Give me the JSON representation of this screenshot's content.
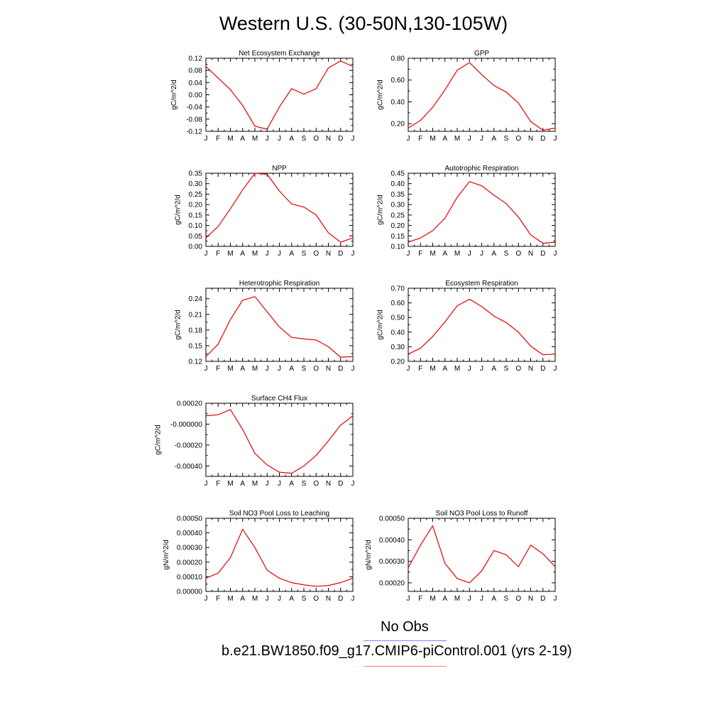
{
  "page": {
    "title": "Western U.S. (30-50N,130-105W)",
    "legend": [
      {
        "label": "No Obs",
        "color": "#8080ff"
      },
      {
        "label": "b.e21.BW1850.f09_g17.CMIP6-piControl.001 (yrs 2-19)",
        "color": "#ff8080"
      }
    ]
  },
  "line_color": "#e60000",
  "chart_data": [
    {
      "type": "line",
      "title": "Net Ecosystem Exchange",
      "ylabel": "gC/m^2/d",
      "categories": [
        "J",
        "F",
        "M",
        "A",
        "M",
        "J",
        "J",
        "A",
        "S",
        "O",
        "N",
        "D",
        "J"
      ],
      "ylim": [
        -0.12,
        0.12
      ],
      "yticks": [
        0.12,
        0.08,
        0.04,
        0.0,
        -0.04,
        -0.08,
        -0.12
      ],
      "ytick_labels": [
        "0.12",
        "0.08",
        "0.04",
        "0.00",
        "-0.04",
        "-0.08",
        "-0.12"
      ],
      "series": [
        {
          "values": [
            0.093,
            0.055,
            0.017,
            -0.035,
            -0.103,
            -0.113,
            -0.04,
            0.02,
            0.002,
            0.02,
            0.088,
            0.111,
            0.093
          ]
        }
      ]
    },
    {
      "type": "line",
      "title": "GPP",
      "ylabel": "gC/m^2/d",
      "categories": [
        "J",
        "F",
        "M",
        "A",
        "M",
        "J",
        "J",
        "A",
        "S",
        "O",
        "N",
        "D",
        "J"
      ],
      "ylim": [
        0.13,
        0.8
      ],
      "yticks": [
        0.2,
        0.4,
        0.6,
        0.8
      ],
      "ytick_labels": [
        "0.20",
        "0.40",
        "0.60",
        "0.80"
      ],
      "series": [
        {
          "values": [
            0.16,
            0.23,
            0.35,
            0.51,
            0.69,
            0.76,
            0.65,
            0.55,
            0.49,
            0.39,
            0.22,
            0.14,
            0.16
          ]
        }
      ]
    },
    {
      "type": "line",
      "title": "NPP",
      "ylabel": "gC/m^2/d",
      "categories": [
        "J",
        "F",
        "M",
        "A",
        "M",
        "J",
        "J",
        "A",
        "S",
        "O",
        "N",
        "D",
        "J"
      ],
      "ylim": [
        0.0,
        0.35
      ],
      "yticks": [
        0.35,
        0.3,
        0.25,
        0.2,
        0.15,
        0.1,
        0.05,
        0.0
      ],
      "ytick_labels": [
        "0.35",
        "0.30",
        "0.25",
        "0.20",
        "0.15",
        "0.10",
        "0.05",
        "0.00"
      ],
      "series": [
        {
          "values": [
            0.04,
            0.095,
            0.18,
            0.27,
            0.35,
            0.345,
            0.265,
            0.203,
            0.188,
            0.15,
            0.065,
            0.02,
            0.04
          ]
        }
      ]
    },
    {
      "type": "line",
      "title": "Autotrophic Respiration",
      "ylabel": "gC/m^2/d",
      "categories": [
        "J",
        "F",
        "M",
        "A",
        "M",
        "J",
        "J",
        "A",
        "S",
        "O",
        "N",
        "D",
        "J"
      ],
      "ylim": [
        0.1,
        0.45
      ],
      "yticks": [
        0.45,
        0.4,
        0.35,
        0.3,
        0.25,
        0.2,
        0.15,
        0.1
      ],
      "ytick_labels": [
        "0.45",
        "0.40",
        "0.35",
        "0.30",
        "0.25",
        "0.20",
        "0.15",
        "0.10"
      ],
      "series": [
        {
          "values": [
            0.12,
            0.14,
            0.175,
            0.235,
            0.335,
            0.41,
            0.39,
            0.345,
            0.305,
            0.24,
            0.155,
            0.115,
            0.12
          ]
        }
      ]
    },
    {
      "type": "line",
      "title": "Heterotrophic Respiration",
      "ylabel": "gC/m^2/d",
      "categories": [
        "J",
        "F",
        "M",
        "A",
        "M",
        "J",
        "J",
        "A",
        "S",
        "O",
        "N",
        "D",
        "J"
      ],
      "ylim": [
        0.12,
        0.26
      ],
      "yticks": [
        0.24,
        0.21,
        0.18,
        0.15,
        0.12
      ],
      "ytick_labels": [
        "0.24",
        "0.21",
        "0.18",
        "0.15",
        "0.12"
      ],
      "series": [
        {
          "values": [
            0.129,
            0.153,
            0.2,
            0.237,
            0.244,
            0.215,
            0.186,
            0.166,
            0.163,
            0.161,
            0.148,
            0.128,
            0.129
          ]
        }
      ]
    },
    {
      "type": "line",
      "title": "Ecosystem Respiration",
      "ylabel": "gC/m^2/d",
      "categories": [
        "J",
        "F",
        "M",
        "A",
        "M",
        "J",
        "J",
        "A",
        "S",
        "O",
        "N",
        "D",
        "J"
      ],
      "ylim": [
        0.2,
        0.7
      ],
      "yticks": [
        0.7,
        0.6,
        0.5,
        0.4,
        0.3,
        0.2
      ],
      "ytick_labels": [
        "0.70",
        "0.60",
        "0.50",
        "0.40",
        "0.30",
        "0.20"
      ],
      "series": [
        {
          "values": [
            0.25,
            0.29,
            0.37,
            0.47,
            0.58,
            0.625,
            0.575,
            0.51,
            0.465,
            0.4,
            0.305,
            0.245,
            0.25
          ]
        }
      ]
    },
    {
      "type": "line",
      "title": "Surface CH4 Flux",
      "ylabel": "gC/m^2/d",
      "categories": [
        "J",
        "F",
        "M",
        "A",
        "M",
        "J",
        "J",
        "A",
        "S",
        "O",
        "N",
        "D",
        "J"
      ],
      "ylim": [
        -0.0005,
        0.0002
      ],
      "yticks": [
        0.0002,
        0.0,
        -0.0002,
        -0.0004
      ],
      "ytick_labels": [
        "0.00020",
        "-0.000000",
        "-0.00020",
        "-0.00040"
      ],
      "series": [
        {
          "values": [
            8e-05,
            9e-05,
            0.00014,
            -5e-05,
            -0.00028,
            -0.00039,
            -0.00046,
            -0.00047,
            -0.0004,
            -0.0003,
            -0.00016,
            -1e-05,
            8e-05
          ]
        }
      ]
    },
    {
      "type": "line",
      "title": "Soil NO3 Pool Loss to Leaching",
      "ylabel": "gN/m^2/d",
      "categories": [
        "J",
        "F",
        "M",
        "A",
        "M",
        "J",
        "J",
        "A",
        "S",
        "O",
        "N",
        "D",
        "J"
      ],
      "ylim": [
        0.0,
        0.0005
      ],
      "yticks": [
        0.0005,
        0.0004,
        0.0003,
        0.0002,
        0.0001,
        0.0
      ],
      "ytick_labels": [
        "0.00050",
        "0.00040",
        "0.00030",
        "0.00020",
        "0.00010",
        "0.00000"
      ],
      "series": [
        {
          "values": [
            9e-05,
            0.000125,
            0.00023,
            0.000425,
            0.0003,
            0.000145,
            9e-05,
            6e-05,
            4.5e-05,
            3.5e-05,
            4e-05,
            6e-05,
            9e-05
          ]
        }
      ]
    },
    {
      "type": "line",
      "title": "Soil NO3 Pool Loss to Runoff",
      "ylabel": "gN/m^2/d",
      "categories": [
        "J",
        "F",
        "M",
        "A",
        "M",
        "J",
        "J",
        "A",
        "S",
        "O",
        "N",
        "D",
        "J"
      ],
      "ylim": [
        0.00016,
        0.0005
      ],
      "yticks": [
        0.0005,
        0.0004,
        0.0003,
        0.0002
      ],
      "ytick_labels": [
        "0.00050",
        "0.00040",
        "0.00030",
        "0.00020"
      ],
      "series": [
        {
          "values": [
            0.00027,
            0.000375,
            0.000465,
            0.00029,
            0.00022,
            0.0002,
            0.000255,
            0.00035,
            0.00033,
            0.000275,
            0.000375,
            0.000335,
            0.000275
          ]
        }
      ]
    }
  ]
}
